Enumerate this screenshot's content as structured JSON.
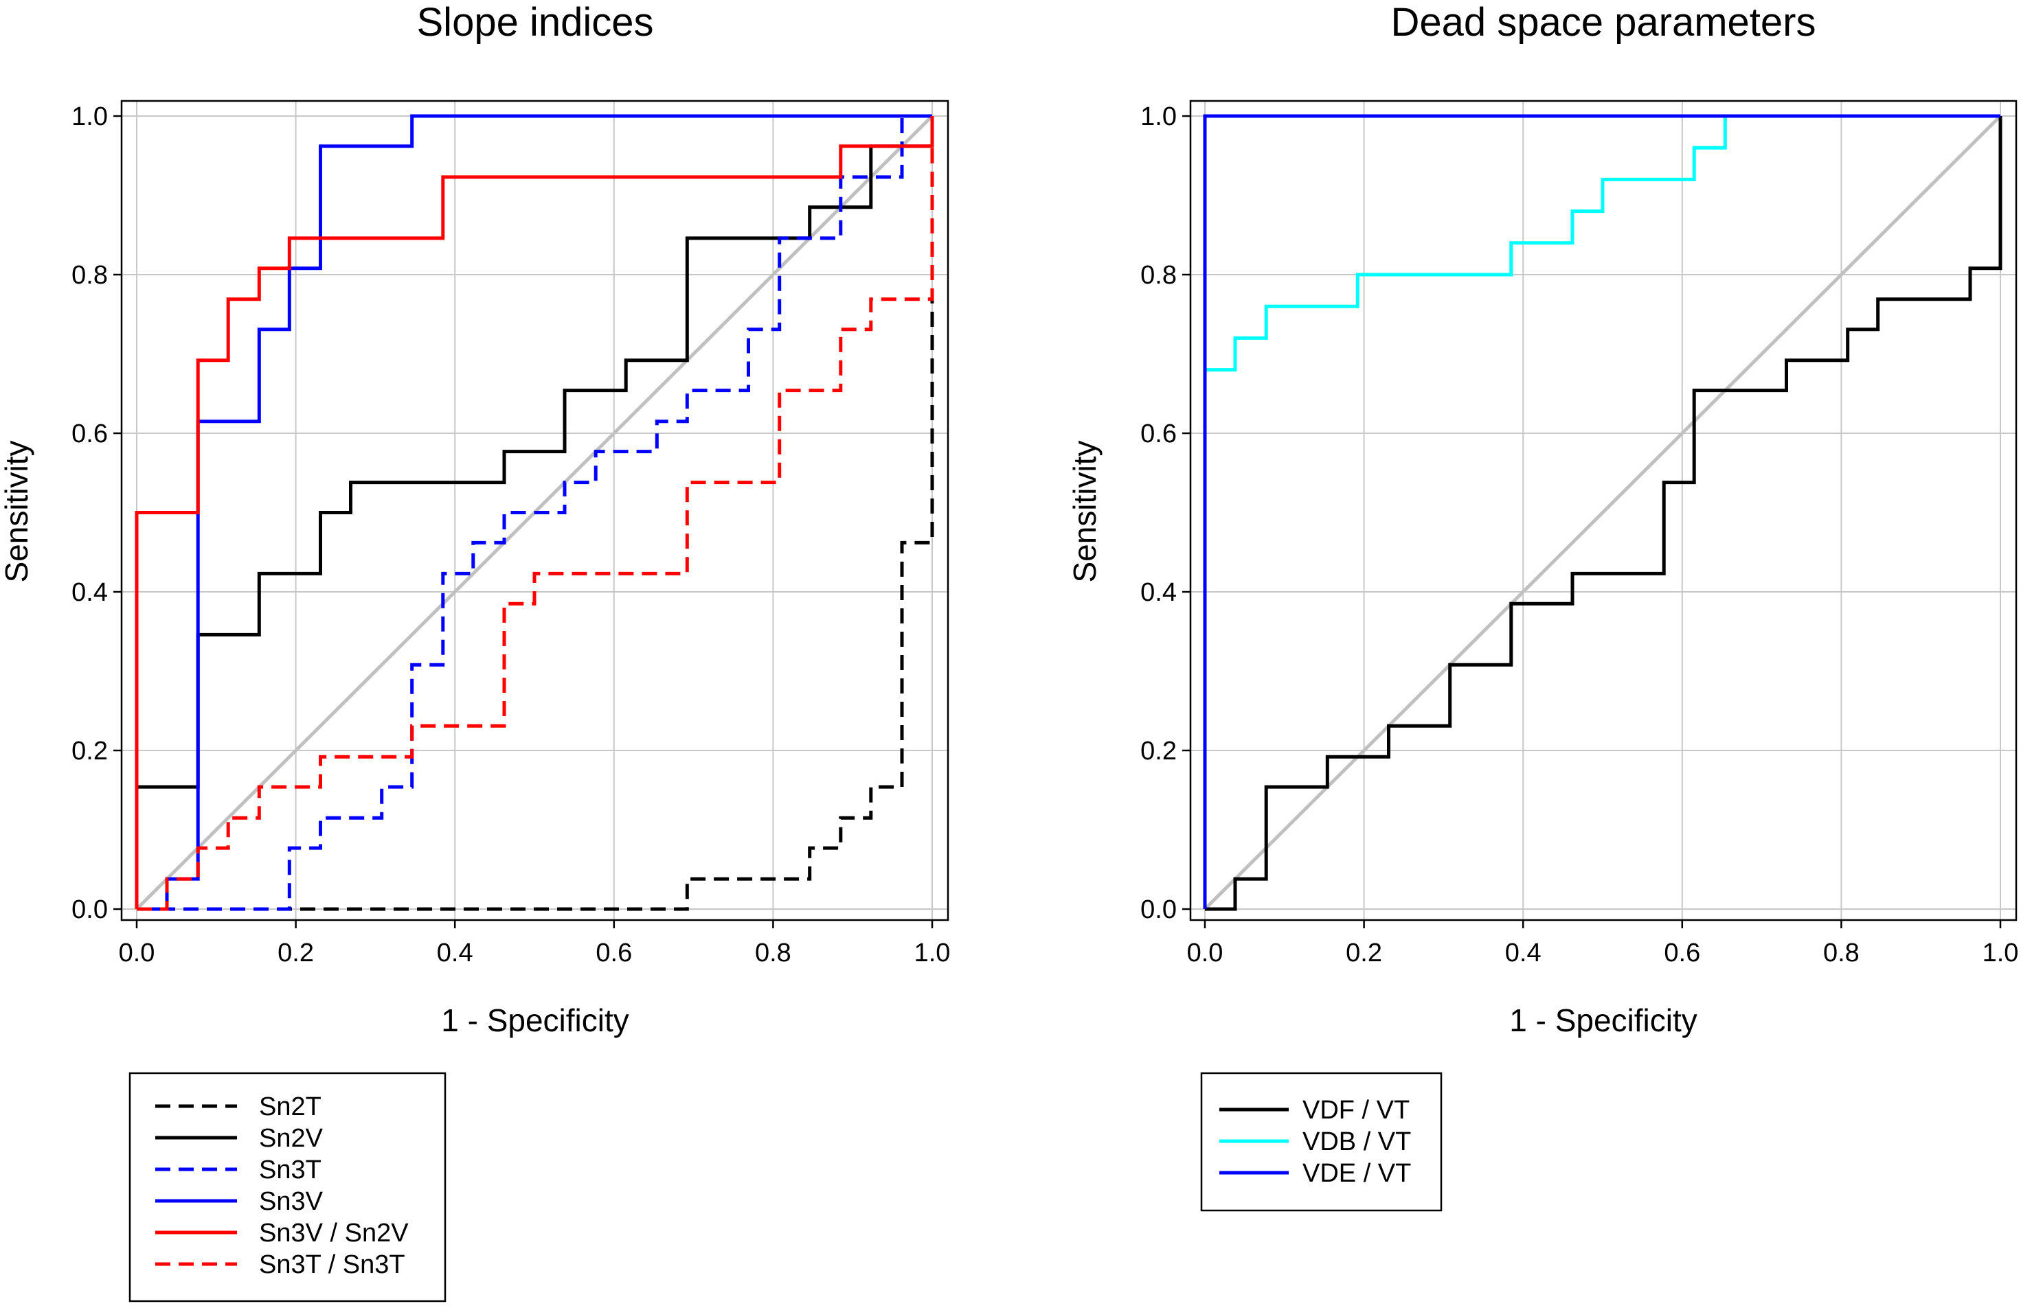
{
  "chart_data": [
    {
      "type": "line",
      "title": "Slope indices",
      "xlabel": "1 - Specificity",
      "ylabel": "Sensitivity",
      "xlim": [
        0,
        1
      ],
      "ylim": [
        0,
        1
      ],
      "xticks": [
        "0.0",
        "0.2",
        "0.4",
        "0.6",
        "0.8",
        "1.0"
      ],
      "yticks": [
        "0.0",
        "0.2",
        "0.4",
        "0.6",
        "0.8",
        "1.0"
      ],
      "grid": true,
      "legend_position": "below",
      "reference_line": {
        "name": "chance",
        "color": "#c0c0c0"
      },
      "series": [
        {
          "name": "Sn2T",
          "color": "#000000",
          "dash": true,
          "values": [
            [
              0,
              0
            ],
            [
              0.692,
              0
            ],
            [
              0.692,
              0.038
            ],
            [
              0.846,
              0.038
            ],
            [
              0.846,
              0.077
            ],
            [
              0.885,
              0.077
            ],
            [
              0.885,
              0.115
            ],
            [
              0.923,
              0.115
            ],
            [
              0.923,
              0.154
            ],
            [
              0.962,
              0.154
            ],
            [
              0.962,
              0.462
            ],
            [
              1,
              0.462
            ],
            [
              1,
              1
            ]
          ]
        },
        {
          "name": "Sn2V",
          "color": "#000000",
          "dash": false,
          "values": [
            [
              0,
              0
            ],
            [
              0,
              0.154
            ],
            [
              0.077,
              0.154
            ],
            [
              0.077,
              0.346
            ],
            [
              0.154,
              0.346
            ],
            [
              0.154,
              0.423
            ],
            [
              0.231,
              0.423
            ],
            [
              0.231,
              0.5
            ],
            [
              0.269,
              0.5
            ],
            [
              0.269,
              0.538
            ],
            [
              0.462,
              0.538
            ],
            [
              0.462,
              0.577
            ],
            [
              0.538,
              0.577
            ],
            [
              0.538,
              0.654
            ],
            [
              0.615,
              0.654
            ],
            [
              0.615,
              0.692
            ],
            [
              0.692,
              0.692
            ],
            [
              0.692,
              0.846
            ],
            [
              0.846,
              0.846
            ],
            [
              0.846,
              0.885
            ],
            [
              0.923,
              0.885
            ],
            [
              0.923,
              0.962
            ],
            [
              1,
              0.962
            ],
            [
              1,
              1
            ]
          ]
        },
        {
          "name": "Sn3T",
          "color": "#0000ff",
          "dash": true,
          "values": [
            [
              0,
              0
            ],
            [
              0.192,
              0
            ],
            [
              0.192,
              0.077
            ],
            [
              0.231,
              0.077
            ],
            [
              0.231,
              0.115
            ],
            [
              0.308,
              0.115
            ],
            [
              0.308,
              0.154
            ],
            [
              0.346,
              0.154
            ],
            [
              0.346,
              0.308
            ],
            [
              0.385,
              0.308
            ],
            [
              0.385,
              0.423
            ],
            [
              0.423,
              0.423
            ],
            [
              0.423,
              0.462
            ],
            [
              0.462,
              0.462
            ],
            [
              0.462,
              0.5
            ],
            [
              0.538,
              0.5
            ],
            [
              0.538,
              0.538
            ],
            [
              0.577,
              0.538
            ],
            [
              0.577,
              0.577
            ],
            [
              0.654,
              0.577
            ],
            [
              0.654,
              0.615
            ],
            [
              0.692,
              0.615
            ],
            [
              0.692,
              0.654
            ],
            [
              0.769,
              0.654
            ],
            [
              0.769,
              0.731
            ],
            [
              0.808,
              0.731
            ],
            [
              0.808,
              0.846
            ],
            [
              0.885,
              0.846
            ],
            [
              0.885,
              0.923
            ],
            [
              0.962,
              0.923
            ],
            [
              0.962,
              1
            ],
            [
              1,
              1
            ]
          ]
        },
        {
          "name": "Sn3V",
          "color": "#0000ff",
          "dash": false,
          "values": [
            [
              0,
              0
            ],
            [
              0.038,
              0
            ],
            [
              0.038,
              0.038
            ],
            [
              0.077,
              0.038
            ],
            [
              0.077,
              0.615
            ],
            [
              0.154,
              0.615
            ],
            [
              0.154,
              0.731
            ],
            [
              0.192,
              0.731
            ],
            [
              0.192,
              0.808
            ],
            [
              0.231,
              0.808
            ],
            [
              0.231,
              0.962
            ],
            [
              0.346,
              0.962
            ],
            [
              0.346,
              1
            ],
            [
              1,
              1
            ]
          ]
        },
        {
          "name": "Sn3V / Sn2V",
          "color": "#ff0000",
          "dash": false,
          "values": [
            [
              0,
              0
            ],
            [
              0,
              0.5
            ],
            [
              0.077,
              0.5
            ],
            [
              0.077,
              0.692
            ],
            [
              0.115,
              0.692
            ],
            [
              0.115,
              0.769
            ],
            [
              0.154,
              0.769
            ],
            [
              0.154,
              0.808
            ],
            [
              0.192,
              0.808
            ],
            [
              0.192,
              0.846
            ],
            [
              0.385,
              0.846
            ],
            [
              0.385,
              0.923
            ],
            [
              0.885,
              0.923
            ],
            [
              0.885,
              0.962
            ],
            [
              1,
              0.962
            ],
            [
              1,
              1
            ]
          ]
        },
        {
          "name": "Sn3T / Sn3T",
          "color": "#ff0000",
          "dash": true,
          "values": [
            [
              0,
              0
            ],
            [
              0.038,
              0
            ],
            [
              0.038,
              0.038
            ],
            [
              0.077,
              0.038
            ],
            [
              0.077,
              0.077
            ],
            [
              0.115,
              0.077
            ],
            [
              0.115,
              0.115
            ],
            [
              0.154,
              0.115
            ],
            [
              0.154,
              0.154
            ],
            [
              0.231,
              0.154
            ],
            [
              0.231,
              0.192
            ],
            [
              0.346,
              0.192
            ],
            [
              0.346,
              0.231
            ],
            [
              0.462,
              0.231
            ],
            [
              0.462,
              0.385
            ],
            [
              0.5,
              0.385
            ],
            [
              0.5,
              0.423
            ],
            [
              0.692,
              0.423
            ],
            [
              0.692,
              0.538
            ],
            [
              0.808,
              0.538
            ],
            [
              0.808,
              0.654
            ],
            [
              0.885,
              0.654
            ],
            [
              0.885,
              0.731
            ],
            [
              0.923,
              0.731
            ],
            [
              0.923,
              0.769
            ],
            [
              1,
              0.769
            ],
            [
              1,
              1
            ]
          ]
        }
      ]
    },
    {
      "type": "line",
      "title": "Dead space parameters",
      "xlabel": "1 - Specificity",
      "ylabel": "Sensitivity",
      "xlim": [
        0,
        1
      ],
      "ylim": [
        0,
        1
      ],
      "xticks": [
        "0.0",
        "0.2",
        "0.4",
        "0.6",
        "0.8",
        "1.0"
      ],
      "yticks": [
        "0.0",
        "0.2",
        "0.4",
        "0.6",
        "0.8",
        "1.0"
      ],
      "grid": true,
      "legend_position": "below",
      "reference_line": {
        "name": "chance",
        "color": "#c0c0c0"
      },
      "series": [
        {
          "name": "VDF / VT",
          "color": "#000000",
          "dash": false,
          "values": [
            [
              0,
              0
            ],
            [
              0.038,
              0
            ],
            [
              0.038,
              0.038
            ],
            [
              0.077,
              0.038
            ],
            [
              0.077,
              0.154
            ],
            [
              0.154,
              0.154
            ],
            [
              0.154,
              0.192
            ],
            [
              0.231,
              0.192
            ],
            [
              0.231,
              0.231
            ],
            [
              0.308,
              0.231
            ],
            [
              0.308,
              0.308
            ],
            [
              0.385,
              0.308
            ],
            [
              0.385,
              0.385
            ],
            [
              0.462,
              0.385
            ],
            [
              0.462,
              0.423
            ],
            [
              0.577,
              0.423
            ],
            [
              0.577,
              0.538
            ],
            [
              0.615,
              0.538
            ],
            [
              0.615,
              0.654
            ],
            [
              0.731,
              0.654
            ],
            [
              0.731,
              0.692
            ],
            [
              0.808,
              0.692
            ],
            [
              0.808,
              0.731
            ],
            [
              0.846,
              0.731
            ],
            [
              0.846,
              0.769
            ],
            [
              0.962,
              0.769
            ],
            [
              0.962,
              0.808
            ],
            [
              1,
              0.808
            ],
            [
              1,
              1
            ]
          ]
        },
        {
          "name": "VDB / VT",
          "color": "#00ffff",
          "dash": false,
          "values": [
            [
              0,
              0
            ],
            [
              0,
              0.68
            ],
            [
              0.038,
              0.68
            ],
            [
              0.038,
              0.72
            ],
            [
              0.077,
              0.72
            ],
            [
              0.077,
              0.76
            ],
            [
              0.192,
              0.76
            ],
            [
              0.192,
              0.8
            ],
            [
              0.385,
              0.8
            ],
            [
              0.385,
              0.84
            ],
            [
              0.462,
              0.84
            ],
            [
              0.462,
              0.88
            ],
            [
              0.5,
              0.88
            ],
            [
              0.5,
              0.92
            ],
            [
              0.615,
              0.92
            ],
            [
              0.615,
              0.96
            ],
            [
              0.654,
              0.96
            ],
            [
              0.654,
              1
            ],
            [
              1,
              1
            ]
          ]
        },
        {
          "name": "VDE / VT",
          "color": "#0000ff",
          "dash": false,
          "values": [
            [
              0,
              0
            ],
            [
              0,
              1
            ],
            [
              1,
              1
            ]
          ]
        }
      ]
    }
  ]
}
